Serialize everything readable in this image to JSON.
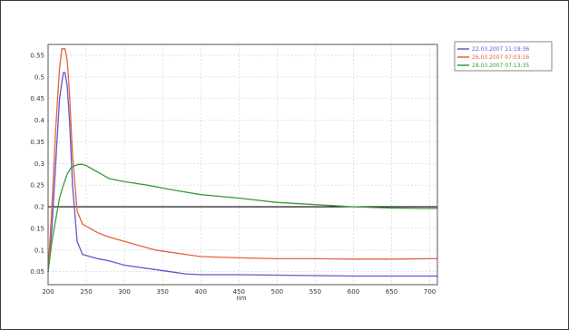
{
  "chart_data": {
    "type": "line",
    "title": "",
    "xlabel": "nm",
    "ylabel": "",
    "xlim": [
      200,
      710
    ],
    "ylim": [
      0.02,
      0.575
    ],
    "grid": true,
    "legend_position": "right",
    "x_ticks": [
      200,
      250,
      300,
      350,
      400,
      450,
      500,
      550,
      600,
      650,
      700
    ],
    "x_tick_labels": [
      "200",
      "250",
      "300",
      "350",
      "400",
      "450",
      "500",
      "550",
      "600",
      "650",
      "700"
    ],
    "y_ticks": [
      0.05,
      0.1,
      0.15,
      0.2,
      0.25,
      0.3,
      0.35,
      0.4,
      0.45,
      0.5,
      0.55
    ],
    "y_tick_labels": [
      "0.05",
      "0.1",
      "0.15",
      "0.2",
      "0.25",
      "0.3",
      "0.35",
      "0.4",
      "0.45",
      "0.5",
      "0.55"
    ],
    "reference_line": {
      "y": 0.2,
      "color": "#000000"
    },
    "series": [
      {
        "name": "22.03.2007 11:19:36",
        "color": "#5a5acf",
        "x": [
          200,
          205,
          210,
          215,
          220,
          222,
          225,
          228,
          232,
          238,
          245,
          255,
          265,
          280,
          300,
          320,
          340,
          360,
          380,
          400,
          450,
          500,
          550,
          600,
          650,
          700,
          710
        ],
        "y": [
          0.05,
          0.15,
          0.3,
          0.45,
          0.51,
          0.51,
          0.48,
          0.4,
          0.25,
          0.12,
          0.09,
          0.085,
          0.08,
          0.075,
          0.065,
          0.06,
          0.055,
          0.05,
          0.045,
          0.043,
          0.043,
          0.042,
          0.041,
          0.04,
          0.04,
          0.04,
          0.04
        ]
      },
      {
        "name": "26.03.2007 07:03:16",
        "color": "#e8603a",
        "x": [
          200,
          205,
          210,
          215,
          218,
          222,
          225,
          228,
          232,
          238,
          245,
          255,
          265,
          280,
          300,
          320,
          340,
          360,
          380,
          400,
          450,
          500,
          550,
          600,
          650,
          700,
          710
        ],
        "y": [
          0.05,
          0.2,
          0.38,
          0.52,
          0.565,
          0.565,
          0.54,
          0.46,
          0.32,
          0.19,
          0.16,
          0.15,
          0.14,
          0.13,
          0.12,
          0.11,
          0.1,
          0.095,
          0.09,
          0.085,
          0.082,
          0.08,
          0.08,
          0.079,
          0.079,
          0.08,
          0.08
        ]
      },
      {
        "name": "28.03.2007 07:13:35",
        "color": "#3c9a3c",
        "x": [
          200,
          205,
          210,
          215,
          220,
          225,
          230,
          235,
          240,
          245,
          250,
          260,
          270,
          280,
          300,
          330,
          360,
          400,
          450,
          500,
          550,
          600,
          650,
          700,
          710
        ],
        "y": [
          0.05,
          0.12,
          0.17,
          0.22,
          0.25,
          0.275,
          0.29,
          0.295,
          0.298,
          0.298,
          0.295,
          0.285,
          0.275,
          0.265,
          0.258,
          0.25,
          0.24,
          0.228,
          0.22,
          0.21,
          0.205,
          0.2,
          0.197,
          0.196,
          0.196
        ]
      }
    ]
  }
}
